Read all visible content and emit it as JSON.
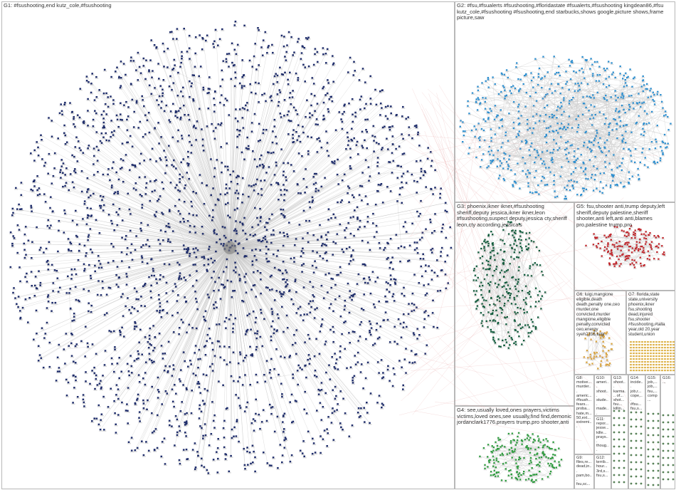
{
  "groups": [
    {
      "id": "G1",
      "label": "G1: #fsushooting,end  kutz_cole,#fsushooting",
      "color": "#1f2d6b"
    },
    {
      "id": "G2",
      "label": "G2: #fsu,#fsualerts  #fsushooting,#floridastate  #fsualerts,#fsushooting  kingdean86,#fsu  kutz_cole,#fsushooting  #fsushooting,end  starbucks,shows  google,picture  shows,frame  picture,saw",
      "color": "#2d8fd0"
    },
    {
      "id": "G3",
      "label": "G3: phoenix,ikner  ikner,#fsushooting  sheriff,deputy  jessica,ikner  ikner,leon  #fsushooting,suspect  deputy,jessica  cty,sheriff  leon,cty  according,jessica's",
      "color": "#0e5a3a"
    },
    {
      "id": "G4",
      "label": "G4: see,usually  loved,ones  prayers,victims  victims,loved  ones,see  usually,find  find,demonic  jordanclark1776,prayers  trump,pro  shooter,anti",
      "color": "#2e9b3e"
    },
    {
      "id": "G5",
      "label": "G5: fsu,shooter  anti,trump  deputy,left  sheriff,deputy  palestine,sheriff  shooter,anti  left,anti  anti,blames  pro,palestine  trump,pro",
      "color": "#c0282d"
    },
    {
      "id": "G6",
      "label": "G6: luigi,mangione  eligible,death  death,penalty  one,ceo  murder,one  convicted,murder  mangione,eligible  penalty,convicted  ceo,energy  syeh2156,luigi",
      "color": "#d9a441"
    },
    {
      "id": "G7",
      "label": "G7: florida,state  state,university  phoenix,ikner  fsu,shooting  dead,injured  fsu,shooter  #fsushooting,#talla  year,old  20,year  student,union",
      "color": "#e0b858"
    },
    {
      "id": "G8",
      "label": "G8: motive... murder... americ... #fsush... fears... proba... hate,m... 50,ext... extremi...",
      "color": "#888888"
    },
    {
      "id": "G9",
      "label": "G9: files,re... dead,in... pam,bo... fsu,sc...",
      "color": "#777777"
    },
    {
      "id": "G10",
      "label": "G10: ameri... shoot... stude... made... same... fsu,s...",
      "color": "#777777"
    },
    {
      "id": "G11",
      "label": "G11: repor... jesse... kille... prays... thoug...",
      "color": "#777777"
    },
    {
      "id": "G12",
      "label": "G12: terrib... hour... 3rd,s... fsu,s...",
      "color": "#777777"
    },
    {
      "id": "G13",
      "label": "G13: shoot... karma... of... shot... fsu... killin...",
      "color": "#777777"
    },
    {
      "id": "G14",
      "label": "G14: incide... job,r... cope,... #fsu... fsu,s...",
      "color": "#777777"
    },
    {
      "id": "G15",
      "label": "G15: job,... job,... fsu,... comp...",
      "color": "#777777"
    },
    {
      "id": "G16",
      "label": "G16: ...",
      "color": "#777777"
    }
  ]
}
